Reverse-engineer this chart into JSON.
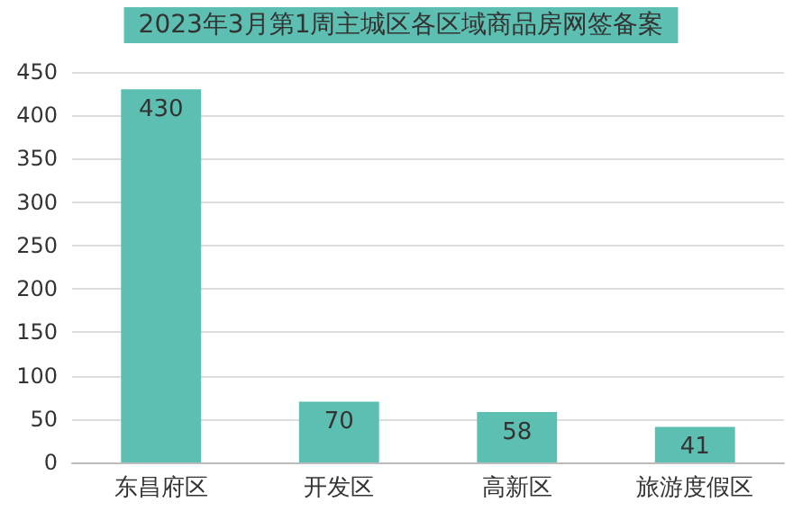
{
  "chart_data": {
    "type": "bar",
    "title": "2023年3月第1周主城区各区域商品房网签备案",
    "categories": [
      "东昌府区",
      "开发区",
      "高新区",
      "旅游度假区"
    ],
    "values": [
      430,
      70,
      58,
      41
    ],
    "color": "#5dbfb1",
    "ylim": [
      0,
      450
    ],
    "yticks": [
      0,
      50,
      100,
      150,
      200,
      250,
      300,
      350,
      400,
      450
    ],
    "grid": true,
    "data_labels": true
  }
}
